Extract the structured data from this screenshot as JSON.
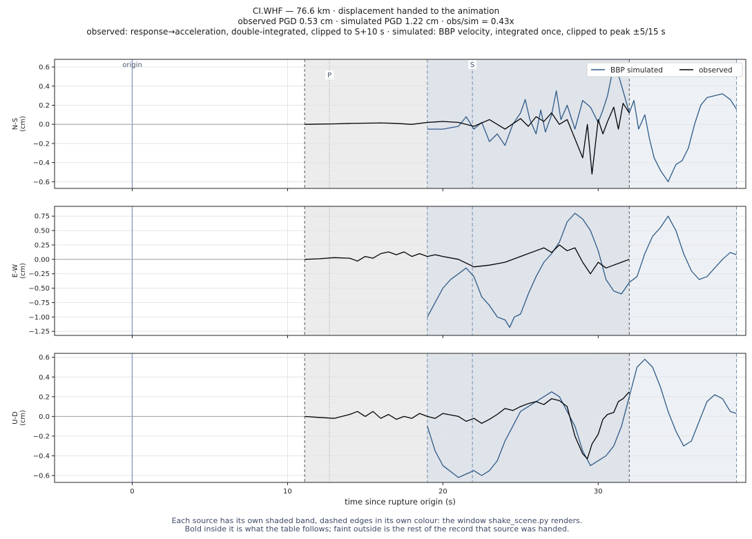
{
  "title_lines": [
    "CI.WHF  —  76.6 km   ·   displacement handed to the animation",
    "observed PGD 0.53 cm   ·   simulated PGD 1.22 cm   ·   obs/sim = 0.43x",
    "observed: response→acceleration, double-integrated, clipped to S+10 s   ·   simulated: BBP velocity, integrated once, clipped to peak ±5/15 s"
  ],
  "footer_lines": [
    "Each source has its own shaded band, dashed edges in its own colour: the window shake_scene.py renders.",
    "Bold inside it is what the table follows;   faint outside is the rest of the record that source was handed."
  ],
  "colors": {
    "observed": "#000000",
    "simulated": "#2e5a87",
    "origin_line": "#8f9cc4",
    "observed_band": "#ececec",
    "simulated_band": "#dfe3ea",
    "grid": "#e4e4e4"
  },
  "chart_data": {
    "type": "line",
    "xlabel": "time since rupture origin (s)",
    "xlim": [
      -5,
      39.5
    ],
    "xticks": [
      0,
      10,
      20,
      30
    ],
    "markers": [
      {
        "label": "origin",
        "x": 0
      },
      {
        "label": "P",
        "x": 12.7
      },
      {
        "label": "S",
        "x": 21.9
      }
    ],
    "windows": {
      "observed": [
        11.1,
        32.0
      ],
      "simulated": [
        19.0,
        38.9
      ]
    },
    "legend": {
      "position": "top-right",
      "entries": [
        "BBP simulated",
        "observed"
      ]
    },
    "panels": [
      {
        "ylabel": "N-S\n(cm)",
        "ylim": [
          -0.67,
          0.68
        ],
        "yticks": [
          0.6,
          0.4,
          0.2,
          0.0,
          -0.2,
          -0.4,
          -0.6
        ],
        "ytick_labels": [
          "0.6",
          "0.4",
          "0.2",
          "0.0",
          "−0.2",
          "−0.4",
          "−0.6"
        ],
        "observed": {
          "x": [
            -5,
            0,
            5,
            11.1,
            12,
            13,
            14,
            15,
            16,
            17,
            18,
            19,
            20,
            21,
            22,
            23,
            24,
            25,
            25.5,
            26,
            26.5,
            27,
            27.5,
            28,
            28.5,
            29,
            29.3,
            29.6,
            30,
            30.3,
            30.6,
            31,
            31.3,
            31.6,
            32
          ],
          "y": [
            0,
            0,
            0,
            0,
            0.003,
            0.005,
            0.01,
            0.012,
            0.015,
            0.01,
            0.0,
            0.02,
            0.03,
            0.02,
            -0.02,
            0.05,
            -0.05,
            0.06,
            -0.02,
            0.08,
            0.03,
            0.12,
            0.0,
            0.05,
            -0.15,
            -0.35,
            0.0,
            -0.52,
            0.05,
            -0.1,
            0.03,
            0.18,
            -0.05,
            0.22,
            0.12
          ]
        },
        "simulated": {
          "x": [
            19,
            20,
            21,
            21.5,
            22,
            22.5,
            23,
            23.5,
            24,
            24.5,
            25,
            25.3,
            25.6,
            26,
            26.3,
            26.6,
            27,
            27.3,
            27.6,
            28,
            28.5,
            29,
            29.5,
            30,
            30.3,
            30.6,
            31,
            31.3,
            31.6,
            32,
            32.3,
            32.6,
            33,
            33.3,
            33.6,
            34,
            34.5,
            35,
            35.4,
            35.8,
            36.2,
            36.6,
            37,
            37.5,
            38,
            38.5,
            38.9
          ],
          "y": [
            -0.05,
            -0.05,
            -0.02,
            0.08,
            -0.05,
            0.02,
            -0.18,
            -0.1,
            -0.22,
            0.0,
            0.12,
            0.26,
            0.05,
            -0.1,
            0.15,
            -0.08,
            0.1,
            0.35,
            0.05,
            0.2,
            -0.05,
            0.25,
            0.18,
            0.02,
            0.15,
            0.3,
            0.62,
            0.52,
            0.35,
            0.12,
            0.25,
            -0.05,
            0.1,
            -0.15,
            -0.35,
            -0.48,
            -0.6,
            -0.42,
            -0.38,
            -0.25,
            0.0,
            0.2,
            0.28,
            0.3,
            0.32,
            0.26,
            0.16
          ]
        }
      },
      {
        "ylabel": "E-W\n(cm)",
        "ylim": [
          -1.32,
          0.92
        ],
        "yticks": [
          0.75,
          0.5,
          0.25,
          0.0,
          -0.25,
          -0.5,
          -0.75,
          -1.0,
          -1.25
        ],
        "ytick_labels": [
          "0.75",
          "0.50",
          "0.25",
          "0.00",
          "−0.25",
          "−0.50",
          "−0.75",
          "−1.00",
          "−1.25"
        ],
        "observed": {
          "x": [
            -5,
            0,
            5,
            11.1,
            12,
            13,
            14,
            14.5,
            15,
            15.5,
            16,
            16.5,
            17,
            17.5,
            18,
            18.5,
            19,
            19.5,
            20,
            21,
            22,
            23,
            24,
            25,
            26,
            26.5,
            27,
            27.5,
            28,
            28.5,
            29,
            29.5,
            30,
            30.5,
            31,
            31.5,
            32
          ],
          "y": [
            0,
            0,
            0,
            0,
            0.01,
            0.03,
            0.02,
            -0.03,
            0.05,
            0.02,
            0.1,
            0.13,
            0.08,
            0.13,
            0.05,
            0.1,
            0.05,
            0.08,
            0.05,
            0.0,
            -0.13,
            -0.1,
            -0.05,
            0.05,
            0.15,
            0.2,
            0.12,
            0.25,
            0.15,
            0.2,
            -0.05,
            -0.25,
            -0.05,
            -0.15,
            -0.1,
            -0.05,
            0.0
          ]
        },
        "simulated": {
          "x": [
            19,
            19.5,
            20,
            20.5,
            21,
            21.5,
            22,
            22.5,
            23,
            23.5,
            24,
            24.3,
            24.6,
            25,
            25.5,
            26,
            26.5,
            27,
            27.5,
            28,
            28.5,
            29,
            29.5,
            30,
            30.5,
            31,
            31.5,
            32,
            32.5,
            33,
            33.5,
            34,
            34.5,
            35,
            35.5,
            36,
            36.5,
            37,
            37.5,
            38,
            38.5,
            38.9
          ],
          "y": [
            -1.0,
            -0.75,
            -0.5,
            -0.35,
            -0.25,
            -0.15,
            -0.3,
            -0.65,
            -0.8,
            -1.0,
            -1.05,
            -1.18,
            -1.0,
            -0.95,
            -0.6,
            -0.3,
            -0.05,
            0.1,
            0.3,
            0.65,
            0.8,
            0.7,
            0.5,
            0.15,
            -0.35,
            -0.55,
            -0.6,
            -0.4,
            -0.3,
            0.1,
            0.4,
            0.55,
            0.75,
            0.5,
            0.1,
            -0.2,
            -0.35,
            -0.3,
            -0.15,
            0.0,
            0.12,
            0.08
          ]
        }
      },
      {
        "ylabel": "U-D\n(cm)",
        "ylim": [
          -0.67,
          0.64
        ],
        "yticks": [
          0.6,
          0.4,
          0.2,
          0.0,
          -0.2,
          -0.4,
          -0.6
        ],
        "ytick_labels": [
          "0.6",
          "0.4",
          "0.2",
          "0.0",
          "−0.2",
          "−0.4",
          "−0.6"
        ],
        "observed": {
          "x": [
            -5,
            0,
            5,
            11.1,
            12,
            13,
            14,
            14.5,
            15,
            15.5,
            16,
            16.5,
            17,
            17.5,
            18,
            18.5,
            19,
            19.5,
            20,
            21,
            21.5,
            22,
            22.5,
            23,
            23.5,
            24,
            24.5,
            25,
            25.5,
            26,
            26.5,
            27,
            27.5,
            28,
            28.5,
            29,
            29.3,
            29.6,
            30,
            30.3,
            30.6,
            31,
            31.3,
            31.6,
            32
          ],
          "y": [
            0,
            0,
            0,
            0,
            -0.01,
            -0.02,
            0.02,
            0.05,
            0.0,
            0.05,
            -0.02,
            0.02,
            -0.03,
            0.0,
            -0.02,
            0.03,
            0.0,
            -0.02,
            0.03,
            0.0,
            -0.05,
            -0.02,
            -0.07,
            -0.03,
            0.02,
            0.08,
            0.06,
            0.1,
            0.13,
            0.15,
            0.12,
            0.18,
            0.16,
            0.1,
            -0.2,
            -0.38,
            -0.43,
            -0.28,
            -0.18,
            -0.03,
            0.02,
            0.04,
            0.15,
            0.18,
            0.25
          ]
        },
        "simulated": {
          "x": [
            19,
            19.5,
            20,
            21,
            22,
            22.5,
            23,
            23.5,
            24,
            24.5,
            25,
            25.5,
            26,
            26.5,
            27,
            27.5,
            28,
            28.5,
            29,
            29.5,
            30,
            30.5,
            31,
            31.5,
            32,
            32.5,
            33,
            33.5,
            34,
            34.5,
            35,
            35.5,
            36,
            36.5,
            37,
            37.5,
            38,
            38.5,
            38.9
          ],
          "y": [
            -0.1,
            -0.35,
            -0.5,
            -0.62,
            -0.55,
            -0.6,
            -0.55,
            -0.45,
            -0.25,
            -0.1,
            0.05,
            0.1,
            0.15,
            0.2,
            0.25,
            0.2,
            0.05,
            -0.1,
            -0.35,
            -0.5,
            -0.45,
            -0.4,
            -0.3,
            -0.1,
            0.2,
            0.5,
            0.58,
            0.5,
            0.3,
            0.05,
            -0.15,
            -0.3,
            -0.25,
            -0.05,
            0.15,
            0.22,
            0.18,
            0.05,
            0.03
          ]
        }
      }
    ]
  }
}
